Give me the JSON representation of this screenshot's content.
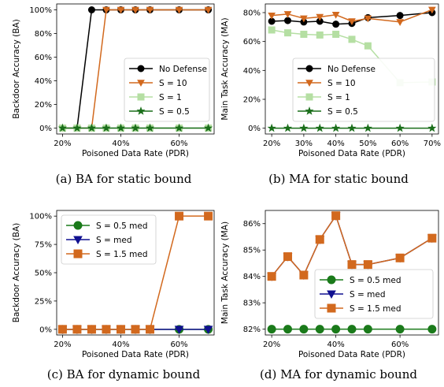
{
  "chart_data": [
    {
      "type": "line",
      "caption": "(a) BA for static bound",
      "xlabel": "Poisoned Data Rate (PDR)",
      "ylabel": "Backdoor Accuracy (BA)",
      "x": [
        20,
        25,
        30,
        35,
        40,
        45,
        50,
        60,
        70
      ],
      "xlim": [
        18,
        72
      ],
      "ylim": [
        -5,
        105
      ],
      "xticks": [
        20,
        40,
        60
      ],
      "xtick_labels": [
        "20%",
        "40%",
        "60%"
      ],
      "yticks": [
        0,
        20,
        40,
        60,
        80,
        100
      ],
      "ytick_labels": [
        "0%",
        "20%",
        "40%",
        "60%",
        "80%",
        "100%"
      ],
      "legend_position": "lower-right",
      "series": [
        {
          "name": "No Defense",
          "color": "#000000",
          "marker": "circle",
          "values": [
            0,
            0,
            100,
            100,
            100,
            100,
            100,
            100,
            100
          ]
        },
        {
          "name": "S = 10",
          "color": "#d2691e",
          "marker": "triangle-down",
          "values": [
            0,
            0,
            0,
            100,
            100,
            100,
            100,
            100,
            100
          ]
        },
        {
          "name": "S = 1",
          "color": "#b5dfa3",
          "marker": "square",
          "values": [
            0,
            0,
            0,
            0,
            0,
            0,
            0,
            0,
            0
          ]
        },
        {
          "name": "S = 0.5",
          "color": "#1a6e1a",
          "marker": "star",
          "values": [
            0,
            0,
            0,
            0,
            0,
            0,
            0,
            0,
            0
          ]
        }
      ]
    },
    {
      "type": "line",
      "caption": "(b) MA for static bound",
      "xlabel": "Poisoned Data Rate (PDR)",
      "ylabel": "Main Task Accuracy (MA)",
      "x": [
        20,
        25,
        30,
        35,
        40,
        45,
        50,
        60,
        70
      ],
      "xlim": [
        18,
        72
      ],
      "ylim": [
        -4,
        86
      ],
      "xticks": [
        20,
        30,
        40,
        50,
        60,
        70
      ],
      "xtick_labels": [
        "20%",
        "30%",
        "40%",
        "50%",
        "60%",
        "70%"
      ],
      "yticks": [
        0,
        20,
        40,
        60,
        80
      ],
      "ytick_labels": [
        "0%",
        "20%",
        "40%",
        "60%",
        "80%"
      ],
      "legend_position": "lower-right",
      "series": [
        {
          "name": "No Defense",
          "color": "#000000",
          "marker": "circle",
          "values": [
            74,
            74.5,
            73.5,
            74,
            72,
            72.5,
            76.5,
            78,
            80
          ]
        },
        {
          "name": "S = 10",
          "color": "#d2691e",
          "marker": "triangle-down",
          "values": [
            78,
            79,
            76,
            77,
            78.5,
            74,
            76,
            73.5,
            82
          ]
        },
        {
          "name": "S = 1",
          "color": "#b5dfa3",
          "marker": "square",
          "values": [
            68,
            66,
            65,
            64.5,
            65,
            61.5,
            57,
            31.5,
            32
          ]
        },
        {
          "name": "S = 0.5",
          "color": "#1a6e1a",
          "marker": "star",
          "values": [
            0,
            0,
            0,
            0,
            0,
            0,
            0,
            0,
            0
          ]
        }
      ]
    },
    {
      "type": "line",
      "caption": "(c) BA for dynamic bound",
      "xlabel": "Poisoned Data Rate (PDR)",
      "ylabel": "Backdoor Accuracy (BA)",
      "x": [
        20,
        25,
        30,
        35,
        40,
        45,
        50,
        60,
        70
      ],
      "xlim": [
        18,
        72
      ],
      "ylim": [
        -5,
        105
      ],
      "xticks": [
        20,
        40,
        60
      ],
      "xtick_labels": [
        "20%",
        "40%",
        "60%"
      ],
      "yticks": [
        0,
        25,
        50,
        75,
        100
      ],
      "ytick_labels": [
        "0%",
        "25%",
        "50%",
        "75%",
        "100%"
      ],
      "legend_position": "upper-left",
      "series": [
        {
          "name": "S = 0.5 med",
          "color": "#1a7a1a",
          "marker": "circle",
          "values": [
            0,
            0,
            0,
            0,
            0,
            0,
            0,
            0,
            0
          ]
        },
        {
          "name": "S = med",
          "color": "#101090",
          "marker": "triangle-down",
          "values": [
            0,
            0,
            0,
            0,
            0,
            0,
            0,
            0,
            0
          ]
        },
        {
          "name": "S = 1.5 med",
          "color": "#d2691e",
          "marker": "square",
          "values": [
            0,
            0,
            0,
            0,
            0,
            0,
            0,
            100,
            100
          ]
        }
      ]
    },
    {
      "type": "line",
      "caption": "(d) MA for dynamic bound",
      "xlabel": "Poisoned Data Rate (PDR)",
      "ylabel": "Main Task Accuracy (MA)",
      "x": [
        20,
        25,
        30,
        35,
        40,
        45,
        50,
        60,
        70
      ],
      "xlim": [
        18,
        72
      ],
      "ylim": [
        81.78,
        86.5
      ],
      "xticks": [
        20,
        40,
        60
      ],
      "xtick_labels": [
        "20%",
        "40%",
        "60%"
      ],
      "yticks": [
        82,
        83,
        84,
        85,
        86
      ],
      "ytick_labels": [
        "82%",
        "83%",
        "84%",
        "85%",
        "86%"
      ],
      "legend_position": "lower-right",
      "series": [
        {
          "name": "S = 0.5 med",
          "color": "#1a7a1a",
          "marker": "circle",
          "values": [
            82,
            82,
            82,
            82,
            82,
            82,
            82,
            82,
            82
          ]
        },
        {
          "name": "S = med",
          "color": "#101090",
          "marker": "triangle-down",
          "values": [
            84.0,
            84.75,
            84.05,
            85.4,
            86.3,
            84.45,
            84.45,
            84.7,
            85.45
          ]
        },
        {
          "name": "S = 1.5 med",
          "color": "#d2691e",
          "marker": "square",
          "values": [
            84.0,
            84.75,
            84.05,
            85.4,
            86.3,
            84.45,
            84.45,
            84.7,
            85.45
          ]
        }
      ]
    }
  ]
}
